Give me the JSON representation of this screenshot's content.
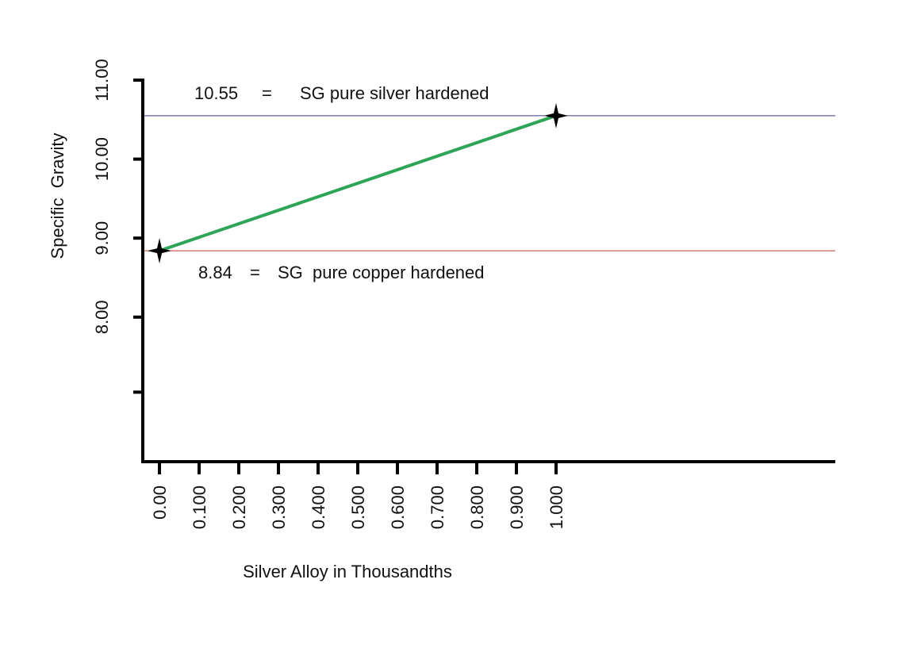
{
  "chart_data": {
    "type": "line",
    "x_label": "Silver Alloy in Thousandths",
    "y_label": "Specific  Gravity",
    "x": [
      0,
      1
    ],
    "series": [
      {
        "color": "#2ea457",
        "values": [
          8.84,
          10.55
        ]
      }
    ],
    "xlim": [
      -0.042,
      1.704
    ],
    "xticks": [
      {
        "value": 0,
        "label": "0.00"
      },
      {
        "value": 0.1,
        "label": "0.100"
      },
      {
        "value": 0.2,
        "label": "0.200"
      },
      {
        "value": 0.3,
        "label": "0.300"
      },
      {
        "value": 0.4,
        "label": "0.400"
      },
      {
        "value": 0.5,
        "label": "0.500"
      },
      {
        "value": 0.6,
        "label": "0.600"
      },
      {
        "value": 0.7,
        "label": "0.700"
      },
      {
        "value": 0.8,
        "label": "0.800"
      },
      {
        "value": 0.9,
        "label": "0.900"
      },
      {
        "value": 1,
        "label": "1.000"
      }
    ],
    "ylim": [
      6.17,
      11
    ],
    "yticks": [
      {
        "value": 11,
        "label": "11.00"
      },
      {
        "value": 10,
        "label": "10.00"
      },
      {
        "value": 9,
        "label": "9.00"
      },
      {
        "value": 8,
        "label": "8.00"
      },
      {
        "value": 7.05,
        "label": null
      }
    ],
    "reference_lines": [
      {
        "value": 10.55,
        "color": "#3a3a8c",
        "separator": "=",
        "text": "SG pure silver hardened"
      },
      {
        "value": 8.84,
        "color": "#c0392b",
        "separator": "=",
        "text": "SG  pure copper hardened"
      }
    ],
    "marker_color": "#000000"
  }
}
